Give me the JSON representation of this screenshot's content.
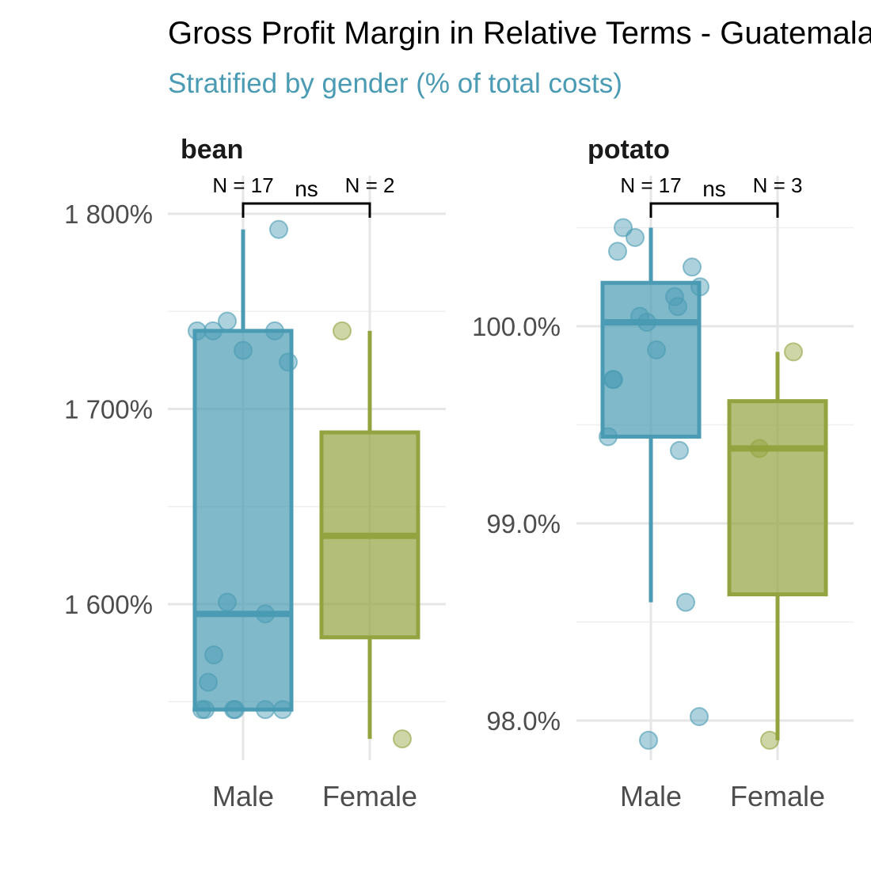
{
  "chart_data": {
    "type": "boxplot",
    "title": "Gross Profit Margin in Relative Terms - Guatemala",
    "subtitle": "Stratified by gender (% of total costs)",
    "categories": [
      "Male",
      "Female"
    ],
    "colors": {
      "Male": "#4a9bb3",
      "Female": "#93a33f"
    },
    "facets": [
      {
        "name": "bean",
        "ylim": [
          1522,
          1822
        ],
        "yticks": [
          1600,
          1700,
          1800
        ],
        "ytick_labels": [
          "1 600%",
          "1 700%",
          "1 800%"
        ],
        "minor_yticks": [
          1550,
          1650,
          1750
        ],
        "groups": [
          {
            "name": "Male",
            "n_label": "N = 17",
            "box": {
              "lower_whisker": 1546,
              "q1": 1546,
              "median": 1595,
              "q3": 1740,
              "upper_whisker": 1792
            },
            "points": [
              1740,
              1740,
              1745,
              1730,
              1740,
              1724,
              1792,
              1601,
              1595,
              1574,
              1560,
              1546,
              1546,
              1546,
              1546,
              1546,
              1546
            ]
          },
          {
            "name": "Female",
            "n_label": "N = 2",
            "box": {
              "lower_whisker": 1531,
              "q1": 1583,
              "median": 1635,
              "q3": 1688,
              "upper_whisker": 1740
            },
            "points": [
              1740,
              1531
            ]
          }
        ],
        "test_label": "ns"
      },
      {
        "name": "potato",
        "ylim": [
          97.8,
          101.8
        ],
        "yticks": [
          98.0,
          99.0,
          100.0
        ],
        "ytick_labels": [
          "98.0%",
          "99.0%",
          "100.0%"
        ],
        "minor_yticks": [
          98.5,
          99.5,
          100.5
        ],
        "groups": [
          {
            "name": "Male",
            "n_label": "N = 17",
            "box": {
              "lower_whisker": 98.6,
              "q1": 99.44,
              "median": 100.02,
              "q3": 100.22,
              "upper_whisker": 100.5
            },
            "points": [
              100.5,
              100.45,
              100.38,
              100.3,
              100.2,
              100.15,
              100.1,
              100.02,
              99.88,
              99.73,
              99.73,
              99.44,
              99.37,
              98.6,
              98.02,
              97.9,
              100.05
            ]
          },
          {
            "name": "Female",
            "n_label": "N = 3",
            "box": {
              "lower_whisker": 97.9,
              "q1": 98.64,
              "median": 99.38,
              "q3": 99.62,
              "upper_whisker": 99.87
            },
            "points": [
              99.87,
              99.38,
              97.9
            ]
          }
        ],
        "test_label": "ns"
      }
    ]
  }
}
